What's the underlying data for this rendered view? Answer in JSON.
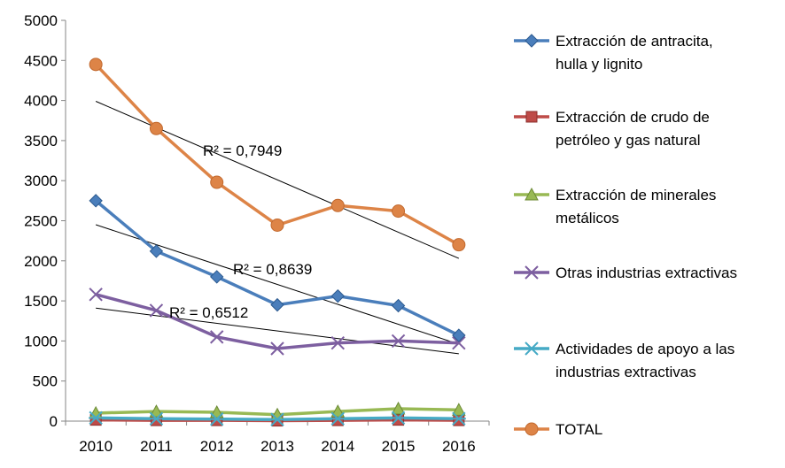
{
  "chart_data": {
    "type": "line",
    "title": "",
    "xlabel": "",
    "ylabel": "",
    "categories": [
      "2010",
      "2011",
      "2012",
      "2013",
      "2014",
      "2015",
      "2016"
    ],
    "y_ticks": [
      "0",
      "500",
      "1000",
      "1500",
      "2000",
      "2500",
      "3000",
      "3500",
      "4000",
      "4500",
      "5000"
    ],
    "ylim": [
      0,
      5000
    ],
    "grid": false,
    "legend_position": "right",
    "series": [
      {
        "name": "Extracción de antracita, hulla y lignito",
        "legend_lines": [
          "Extracción de antracita,",
          "hulla y lignito"
        ],
        "color": "#4a7ebb",
        "marker": "diamond",
        "values": [
          2750,
          2120,
          1800,
          1450,
          1560,
          1440,
          1070
        ]
      },
      {
        "name": "Extracción de crudo de petróleo y gas natural",
        "legend_lines": [
          "Extracción de crudo de",
          "petróleo y gas natural"
        ],
        "color": "#be4b48",
        "marker": "square",
        "values": [
          15,
          10,
          10,
          5,
          10,
          15,
          10
        ]
      },
      {
        "name": "Extracción de minerales metálicos",
        "legend_lines": [
          "Extracción de minerales",
          "metálicos"
        ],
        "color": "#98b954",
        "marker": "triangle",
        "values": [
          100,
          120,
          110,
          80,
          120,
          155,
          140
        ]
      },
      {
        "name": "Otras industrias extractivas",
        "legend_lines": [
          "Otras industrias extractivas"
        ],
        "color": "#7d5fa0",
        "marker": "x",
        "values": [
          1580,
          1380,
          1050,
          905,
          975,
          1000,
          975
        ]
      },
      {
        "name": "Actividades de apoyo a las industrias extractivas",
        "legend_lines": [
          "Actividades de apoyo a las",
          "industrias extractivas"
        ],
        "color": "#46aac5",
        "marker": "star",
        "values": [
          40,
          30,
          25,
          20,
          30,
          40,
          30
        ]
      },
      {
        "name": "TOTAL",
        "legend_lines": [
          "TOTAL"
        ],
        "color": "#dd8447",
        "marker": "circle",
        "values": [
          4450,
          3650,
          2980,
          2445,
          2690,
          2620,
          2200
        ]
      }
    ],
    "trendlines": [
      {
        "series": "TOTAL",
        "label": "R² = 0,7949",
        "start": 3990,
        "end": 2030
      },
      {
        "series": "Extracción de antracita, hulla y lignito",
        "label": "R² = 0,8639",
        "start": 2450,
        "end": 960
      },
      {
        "series": "Otras industrias extractivas",
        "label": "R² = 0,6512",
        "start": 1410,
        "end": 840
      }
    ]
  }
}
